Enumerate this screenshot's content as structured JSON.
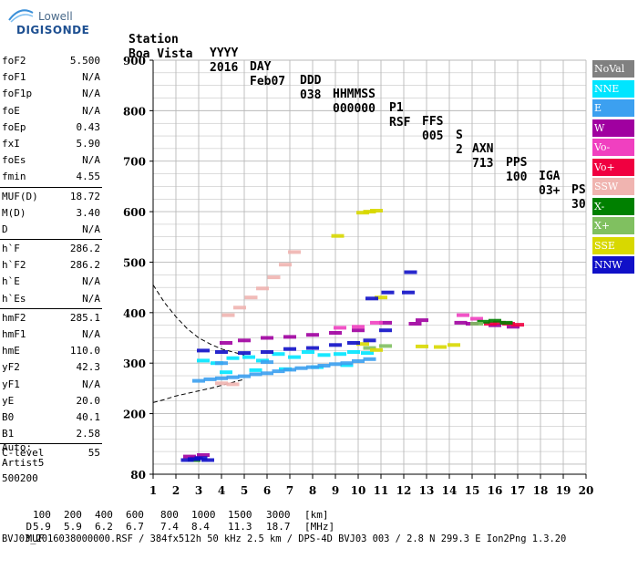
{
  "logo": {
    "company": "Lowell",
    "product": "DIGISONDE"
  },
  "header": {
    "labels": [
      "Station",
      "YYYY",
      "DAY",
      "DDD",
      "HHMMSS",
      "P1",
      "FFS",
      "S",
      "AXN",
      "PPS",
      "IGA",
      "PS"
    ],
    "values": [
      "Boa Vista",
      "2016",
      "Feb07",
      "038",
      "000000",
      "RSF",
      "005",
      "2",
      "713",
      "100",
      "03+",
      "30"
    ]
  },
  "params": {
    "groups": [
      [
        {
          "label": "foF2",
          "value": "5.500"
        },
        {
          "label": "foF1",
          "value": "N/A"
        },
        {
          "label": "foF1p",
          "value": "N/A"
        },
        {
          "label": "foE",
          "value": "N/A"
        },
        {
          "label": "foEp",
          "value": "0.43"
        },
        {
          "label": "fxI",
          "value": "5.90"
        },
        {
          "label": "foEs",
          "value": "N/A"
        },
        {
          "label": "fmin",
          "value": "4.55"
        }
      ],
      [
        {
          "label": "MUF(D)",
          "value": "18.72"
        },
        {
          "label": "M(D)",
          "value": "3.40"
        },
        {
          "label": "D",
          "value": "N/A"
        }
      ],
      [
        {
          "label": "h`F",
          "value": "286.2"
        },
        {
          "label": "h`F2",
          "value": "286.2"
        },
        {
          "label": "h`E",
          "value": "N/A"
        },
        {
          "label": "h`Es",
          "value": "N/A"
        }
      ],
      [
        {
          "label": "hmF2",
          "value": "285.1"
        },
        {
          "label": "hmF1",
          "value": "N/A"
        },
        {
          "label": "hmE",
          "value": "110.0"
        },
        {
          "label": "yF2",
          "value": "42.3"
        },
        {
          "label": "yF1",
          "value": "N/A"
        },
        {
          "label": "yE",
          "value": "20.0"
        },
        {
          "label": "B0",
          "value": "40.1"
        },
        {
          "label": "B1",
          "value": "2.58"
        }
      ],
      [
        {
          "label": "C-level",
          "value": "55"
        }
      ]
    ]
  },
  "auto": {
    "line1": "Auto:",
    "line2": "Artist5",
    "line3": "500200"
  },
  "legend": [
    {
      "label": "NoVal",
      "color": "#808080"
    },
    {
      "label": "NNE",
      "color": "#00e5ff"
    },
    {
      "label": "E",
      "color": "#3ca0f0"
    },
    {
      "label": "W",
      "color": "#a000a0"
    },
    {
      "label": "Vo-",
      "color": "#f040c0"
    },
    {
      "label": "Vo+",
      "color": "#f00040"
    },
    {
      "label": "SSW",
      "color": "#f0b4b0"
    },
    {
      "label": "X-",
      "color": "#008000"
    },
    {
      "label": "X+",
      "color": "#80c060"
    },
    {
      "label": "SSE",
      "color": "#d8d800"
    },
    {
      "label": "NNW",
      "color": "#1010c8"
    }
  ],
  "footer": {
    "d_label": "D",
    "d_values": [
      "100",
      "200",
      "400",
      "600",
      "800",
      "1000",
      "1500",
      "3000",
      "[km]"
    ],
    "muf_label": "MUF",
    "muf_values": [
      "5.9",
      "5.9",
      "6.2",
      "6.7",
      "7.4",
      "8.4",
      "11.3",
      "18.7",
      "[MHz]"
    ],
    "info": "BVJ03_2016038000000.RSF / 384fx512h 50 kHz 2.5 km / DPS-4D BVJ03 003 / 2.8 N 299.3 E Ion2Png 1.3.20"
  },
  "chart_data": {
    "type": "scatter",
    "title": "",
    "xlabel": "",
    "ylabel": "",
    "xlim": [
      1,
      20
    ],
    "ylim": [
      80,
      900
    ],
    "x_ticks": [
      1,
      2,
      3,
      4,
      5,
      6,
      7,
      8,
      9,
      10,
      11,
      12,
      13,
      14,
      15,
      16,
      17,
      18,
      19,
      20
    ],
    "y_ticks": [
      80,
      200,
      300,
      400,
      500,
      600,
      700,
      800,
      900
    ],
    "grid": true,
    "legend_position": "right",
    "series": [
      {
        "name": "NNE",
        "color": "#00e5ff",
        "points": [
          [
            3.2,
            305
          ],
          [
            3.8,
            300
          ],
          [
            4.5,
            310
          ],
          [
            5.2,
            312
          ],
          [
            5.8,
            305
          ],
          [
            6.5,
            318
          ],
          [
            7.2,
            312
          ],
          [
            7.8,
            322
          ],
          [
            8.5,
            316
          ],
          [
            9.2,
            318
          ],
          [
            9.8,
            322
          ],
          [
            10.4,
            320
          ],
          [
            4.2,
            282
          ],
          [
            5.5,
            286
          ],
          [
            6.8,
            288
          ],
          [
            8.2,
            292
          ],
          [
            9.5,
            296
          ]
        ]
      },
      {
        "name": "E",
        "color": "#3ca0f0",
        "points": [
          [
            3.0,
            265
          ],
          [
            3.5,
            268
          ],
          [
            4.0,
            270
          ],
          [
            4.5,
            272
          ],
          [
            5.0,
            274
          ],
          [
            5.5,
            278
          ],
          [
            6.0,
            280
          ],
          [
            6.5,
            284
          ],
          [
            7.0,
            287
          ],
          [
            7.5,
            290
          ],
          [
            8.0,
            292
          ],
          [
            8.5,
            295
          ],
          [
            9.0,
            298
          ],
          [
            9.5,
            300
          ],
          [
            10.0,
            304
          ],
          [
            10.5,
            308
          ],
          [
            4.0,
            300
          ],
          [
            6.0,
            302
          ]
        ]
      },
      {
        "name": "W",
        "color": "#a000a0",
        "points": [
          [
            2.6,
            115
          ],
          [
            2.9,
            112
          ],
          [
            3.2,
            118
          ],
          [
            4.2,
            340
          ],
          [
            5.0,
            345
          ],
          [
            6.0,
            350
          ],
          [
            7.0,
            352
          ],
          [
            8.0,
            356
          ],
          [
            9.0,
            360
          ],
          [
            10.0,
            365
          ],
          [
            11.2,
            380
          ],
          [
            12.5,
            378
          ],
          [
            12.8,
            385
          ],
          [
            14.5,
            380
          ],
          [
            15.0,
            378
          ],
          [
            16.0,
            375
          ],
          [
            16.8,
            372
          ]
        ]
      },
      {
        "name": "Vo-",
        "color": "#f040c0",
        "points": [
          [
            9.2,
            370
          ],
          [
            10.0,
            372
          ],
          [
            10.8,
            380
          ],
          [
            14.6,
            395
          ],
          [
            15.2,
            388
          ]
        ]
      },
      {
        "name": "Vo+",
        "color": "#f00040",
        "points": [
          [
            15.8,
            378
          ],
          [
            16.2,
            380
          ],
          [
            16.6,
            378
          ],
          [
            17.0,
            376
          ]
        ]
      },
      {
        "name": "SSW",
        "color": "#f0b4b0",
        "points": [
          [
            4.3,
            395
          ],
          [
            4.8,
            410
          ],
          [
            5.3,
            430
          ],
          [
            5.8,
            448
          ],
          [
            6.3,
            470
          ],
          [
            6.8,
            495
          ],
          [
            7.2,
            520
          ],
          [
            4.0,
            260
          ],
          [
            4.5,
            258
          ]
        ]
      },
      {
        "name": "X-",
        "color": "#008000",
        "points": [
          [
            15.5,
            382
          ],
          [
            16.0,
            384
          ],
          [
            16.5,
            380
          ],
          [
            2.8,
            108
          ]
        ]
      },
      {
        "name": "X+",
        "color": "#80c060",
        "points": [
          [
            10.5,
            330
          ],
          [
            11.2,
            334
          ],
          [
            15.2,
            378
          ]
        ]
      },
      {
        "name": "SSE",
        "color": "#d8d800",
        "points": [
          [
            10.2,
            598
          ],
          [
            10.5,
            600
          ],
          [
            10.8,
            602
          ],
          [
            9.1,
            552
          ],
          [
            10.2,
            338
          ],
          [
            10.8,
            326
          ],
          [
            12.8,
            333
          ],
          [
            13.6,
            332
          ],
          [
            14.2,
            336
          ],
          [
            11.0,
            430
          ]
        ]
      },
      {
        "name": "NNW",
        "color": "#1010c8",
        "points": [
          [
            2.5,
            108
          ],
          [
            2.8,
            110
          ],
          [
            3.1,
            112
          ],
          [
            3.4,
            108
          ],
          [
            3.2,
            325
          ],
          [
            4.0,
            322
          ],
          [
            5.0,
            320
          ],
          [
            6.0,
            322
          ],
          [
            7.0,
            328
          ],
          [
            8.0,
            330
          ],
          [
            9.0,
            336
          ],
          [
            9.8,
            340
          ],
          [
            10.5,
            345
          ],
          [
            11.2,
            365
          ],
          [
            10.6,
            428
          ],
          [
            11.3,
            440
          ],
          [
            12.2,
            440
          ],
          [
            12.3,
            480
          ]
        ]
      }
    ],
    "profile_lines": [
      {
        "name": "",
        "style": "dashed",
        "points": [
          [
            1.0,
            455
          ],
          [
            1.5,
            420
          ],
          [
            2.0,
            392
          ],
          [
            2.5,
            368
          ],
          [
            3.0,
            350
          ],
          [
            3.5,
            338
          ],
          [
            4.0,
            328
          ],
          [
            4.5,
            322
          ],
          [
            5.0,
            316
          ]
        ]
      },
      {
        "name": "",
        "style": "dashed",
        "points": [
          [
            1.0,
            222
          ],
          [
            1.5,
            228
          ],
          [
            2.0,
            235
          ],
          [
            2.5,
            240
          ],
          [
            3.0,
            245
          ],
          [
            3.5,
            250
          ],
          [
            4.0,
            256
          ],
          [
            4.5,
            262
          ],
          [
            5.0,
            268
          ]
        ]
      }
    ]
  }
}
